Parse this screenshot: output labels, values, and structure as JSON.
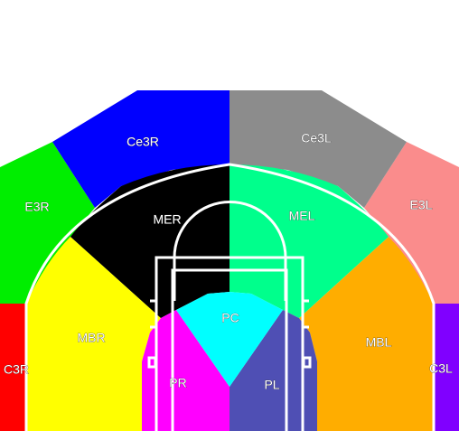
{
  "zones": [
    {
      "key": "c3r",
      "label": "C3R",
      "color": "#ff0000"
    },
    {
      "key": "e3r",
      "label": "E3R",
      "color": "#00ee00"
    },
    {
      "key": "ce3r",
      "label": "Ce3R",
      "color": "#0000ff"
    },
    {
      "key": "ce3l",
      "label": "Ce3L",
      "color": "#8c8c8c"
    },
    {
      "key": "e3l",
      "label": "E3L",
      "color": "#fa8c8c"
    },
    {
      "key": "c3l",
      "label": "C3L",
      "color": "#8000ff"
    },
    {
      "key": "mbr",
      "label": "MBR",
      "color": "#ffff00"
    },
    {
      "key": "mer",
      "label": "MER",
      "color": "#000000"
    },
    {
      "key": "mel",
      "label": "MEL",
      "color": "#00ff8c"
    },
    {
      "key": "mbl",
      "label": "MBL",
      "color": "#ffad00"
    },
    {
      "key": "pr",
      "label": "PR",
      "color": "#ff00ff"
    },
    {
      "key": "pl",
      "label": "PL",
      "color": "#4f4fb4"
    },
    {
      "key": "pc",
      "label": "PC",
      "color": "#00ffff"
    }
  ]
}
